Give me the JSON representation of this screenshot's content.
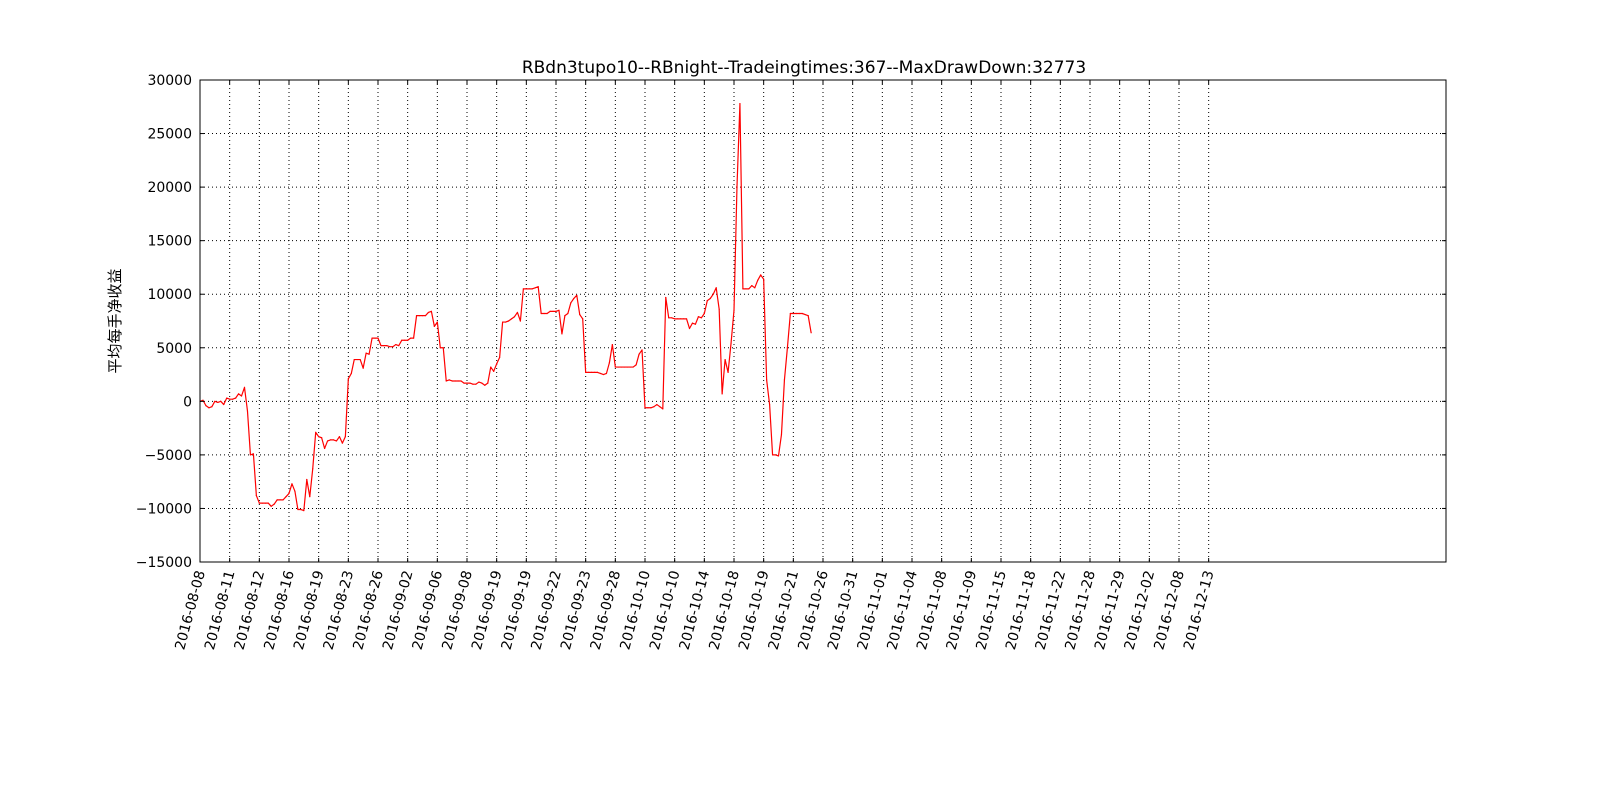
{
  "chart_data": {
    "type": "line",
    "title": "RBdn3tupo10--RBnight--Tradeingtimes:367--MaxDrawDown:32773",
    "xlabel": "",
    "ylabel": "平均每手净收益",
    "ylim": [
      -15000,
      30000
    ],
    "yticks": [
      30000,
      25000,
      20000,
      15000,
      10000,
      5000,
      0,
      -5000,
      -10000,
      -15000
    ],
    "ytick_labels": [
      "30000",
      "25000",
      "20000",
      "15000",
      "10000",
      "5000",
      "0",
      "−5000",
      "−10000",
      "−15000"
    ],
    "xtick_labels": [
      "2016-08-08",
      "2016-08-11",
      "2016-08-12",
      "2016-08-16",
      "2016-08-19",
      "2016-08-23",
      "2016-08-26",
      "2016-09-02",
      "2016-09-06",
      "2016-09-08",
      "2016-09-19",
      "2016-09-19",
      "2016-09-22",
      "2016-09-23",
      "2016-09-28",
      "2016-10-10",
      "2016-10-10",
      "2016-10-14",
      "2016-10-18",
      "2016-10-19",
      "2016-10-21",
      "2016-10-26",
      "2016-10-31",
      "2016-11-01",
      "2016-11-04",
      "2016-11-08",
      "2016-11-09",
      "2016-11-15",
      "2016-11-18",
      "2016-11-22",
      "2016-11-28",
      "2016-11-29",
      "2016-12-02",
      "2016-12-08",
      "2016-12-13"
    ],
    "xlim": [
      0,
      420
    ],
    "xtick_every": 10,
    "grid": true,
    "line_color": "#ff0000",
    "series": [
      {
        "values": [
          0,
          100,
          -400,
          -600,
          -500,
          0,
          -100,
          0,
          -300,
          300,
          200,
          200,
          300,
          700,
          500,
          1300,
          -900,
          -5000,
          -4900,
          -8800,
          -9500,
          -9500,
          -9500,
          -9500,
          -9800,
          -9600,
          -9200,
          -9200,
          -9200,
          -8900,
          -8600,
          -7700,
          -8400,
          -10100,
          -10100,
          -10200,
          -7300,
          -8900,
          -6300,
          -2900,
          -3300,
          -3400,
          -4400,
          -3700,
          -3600,
          -3600,
          -3700,
          -3300,
          -3900,
          -3300,
          2100,
          2600,
          3900,
          3900,
          3900,
          3100,
          4500,
          4400,
          5900,
          5900,
          5900,
          5200,
          5200,
          5200,
          5100,
          5100,
          5300,
          5200,
          5700,
          5700,
          5700,
          5900,
          5900,
          8000,
          8000,
          8000,
          8000,
          8300,
          8400,
          7000,
          7400,
          5000,
          5000,
          1900,
          2000,
          1900,
          1900,
          1900,
          1900,
          1700,
          1700,
          1700,
          1600,
          1600,
          1800,
          1700,
          1500,
          1700,
          3200,
          2800,
          3500,
          4100,
          7400,
          7400,
          7500,
          7700,
          7900,
          8300,
          7500,
          10500,
          10500,
          10500,
          10500,
          10600,
          10700,
          8200,
          8200,
          8200,
          8400,
          8400,
          8400,
          8500,
          6300,
          8000,
          8200,
          9200,
          9600,
          9900,
          8100,
          7700,
          2700,
          2700,
          2700,
          2700,
          2700,
          2600,
          2500,
          2600,
          3600,
          5300,
          3200,
          3200,
          3200,
          3200,
          3200,
          3200,
          3200,
          3400,
          4400,
          4800,
          -600,
          -600,
          -600,
          -500,
          -300,
          -500,
          -700,
          9700,
          7800,
          7800,
          7700,
          7700,
          7700,
          7700,
          7700,
          6800,
          7300,
          7200,
          7900,
          7800,
          8200,
          9400,
          9600,
          10000,
          10600,
          8600,
          700,
          3900,
          2700,
          5400,
          8500,
          20000,
          27800,
          10500,
          10500,
          10500,
          10800,
          10600,
          11300,
          11800,
          11400,
          2000,
          -300,
          -5000,
          -5000,
          -5100,
          -3100,
          2000,
          5000,
          8200,
          8200,
          8200,
          8200,
          8200,
          8100,
          8000,
          6400
        ]
      }
    ]
  }
}
